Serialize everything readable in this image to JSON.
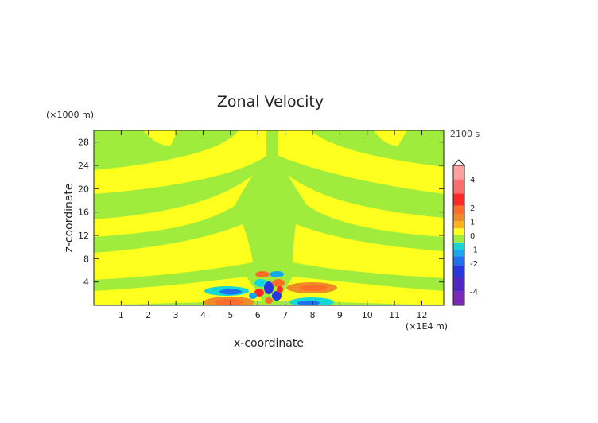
{
  "chart_data": {
    "type": "heatmap",
    "title": "Zonal Velocity",
    "xlabel": "x-coordinate",
    "ylabel": "z-coordinate",
    "x_unit_label": "(×1E4 m)",
    "y_unit_label": "(×1000 m)",
    "time_label": "2100 s",
    "xlim": [
      0,
      12.8
    ],
    "ylim": [
      0,
      30
    ],
    "x_ticks": [
      1,
      2,
      3,
      4,
      5,
      6,
      7,
      8,
      9,
      10,
      11,
      12
    ],
    "y_ticks": [
      4,
      8,
      12,
      16,
      20,
      24,
      28
    ],
    "colorbar": {
      "min": -5,
      "max": 5,
      "tick_labels": [
        "4",
        "2",
        "1",
        "0",
        "-1",
        "-2",
        "-4"
      ],
      "tick_values": [
        4,
        2,
        1,
        0,
        -1,
        -2,
        -4
      ],
      "colors": [
        {
          "value": -4.5,
          "color": "#7a28b8"
        },
        {
          "value": -3.5,
          "color": "#5028c8"
        },
        {
          "value": -2.5,
          "color": "#2838e0"
        },
        {
          "value": -1.75,
          "color": "#1e70f0"
        },
        {
          "value": -1.25,
          "color": "#14a8f0"
        },
        {
          "value": -0.75,
          "color": "#14d8d8"
        },
        {
          "value": -0.25,
          "color": "#a0ec3c"
        },
        {
          "value": 0.25,
          "color": "#ffff1e"
        },
        {
          "value": 0.75,
          "color": "#ffb41e"
        },
        {
          "value": 1.25,
          "color": "#f08c28"
        },
        {
          "value": 1.75,
          "color": "#ff6e28"
        },
        {
          "value": 2.5,
          "color": "#ff2828"
        },
        {
          "value": 3.5,
          "color": "#ff6e6e"
        },
        {
          "value": 4.5,
          "color": "#ffa0a0"
        }
      ]
    }
  }
}
